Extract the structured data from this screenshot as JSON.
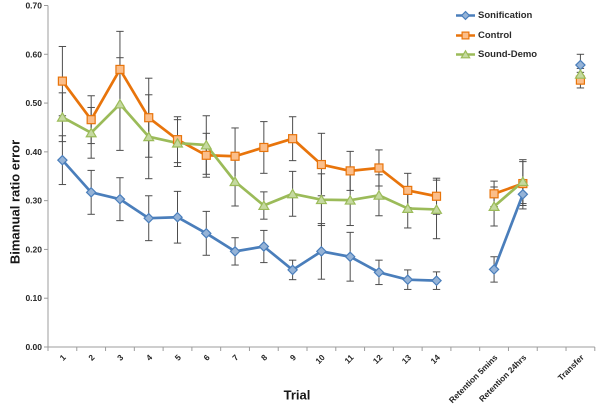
{
  "chart_data": {
    "type": "line",
    "title": "",
    "xlabel": "Trial",
    "ylabel": "Bimanual ratio error",
    "ylim": [
      0.0,
      0.7
    ],
    "ystep": 0.1,
    "grid": false,
    "legend_position": "top-right",
    "error_bars": true,
    "categories": [
      "1",
      "2",
      "3",
      "4",
      "5",
      "6",
      "7",
      "8",
      "9",
      "10",
      "11",
      "12",
      "13",
      "14",
      "",
      "Retention 5mins",
      "Retention 24hrs",
      "",
      "Transfer"
    ],
    "series": [
      {
        "name": "Sonification",
        "marker": "diamond",
        "color": "#4a7ebb",
        "marker_fill": "#95b3d7",
        "values": [
          0.383,
          0.317,
          0.303,
          0.264,
          0.266,
          0.233,
          0.196,
          0.206,
          0.158,
          0.196,
          0.185,
          0.153,
          0.138,
          0.136,
          null,
          0.159,
          0.313,
          null,
          0.578
        ],
        "errors": [
          0.05,
          0.045,
          0.044,
          0.046,
          0.053,
          0.045,
          0.028,
          0.033,
          0.02,
          0.057,
          0.05,
          0.025,
          0.02,
          0.018,
          null,
          0.026,
          0.03,
          null,
          0.022
        ]
      },
      {
        "name": "Control",
        "marker": "square",
        "color": "#e8740b",
        "marker_fill": "#fbbe8a",
        "values": [
          0.545,
          0.466,
          0.569,
          0.47,
          0.425,
          0.393,
          0.391,
          0.409,
          0.427,
          0.374,
          0.361,
          0.367,
          0.321,
          0.309,
          null,
          0.314,
          0.335,
          null,
          0.547
        ],
        "errors": [
          0.071,
          0.049,
          0.078,
          0.081,
          0.047,
          0.045,
          0.058,
          0.053,
          0.045,
          0.064,
          0.04,
          0.037,
          0.035,
          0.037,
          null,
          0.026,
          0.045,
          null,
          0.016
        ]
      },
      {
        "name": "Sound-Demo",
        "marker": "triangle",
        "color": "#9bbb59",
        "marker_fill": "#c5d9a0",
        "values": [
          0.471,
          0.439,
          0.498,
          0.431,
          0.418,
          0.414,
          0.339,
          0.29,
          0.314,
          0.302,
          0.301,
          0.311,
          0.284,
          0.282,
          null,
          0.288,
          0.339,
          null,
          0.559
        ],
        "errors": [
          0.05,
          0.052,
          0.095,
          0.086,
          0.048,
          0.06,
          0.05,
          0.028,
          0.046,
          0.053,
          0.052,
          0.042,
          0.04,
          0.06,
          null,
          0.04,
          0.045,
          null,
          0.012
        ]
      }
    ],
    "colors": {
      "error_bar": "#4d4d4d",
      "axis": "#9c9c9c",
      "tick_label": "#262626",
      "title": "#171717"
    }
  }
}
